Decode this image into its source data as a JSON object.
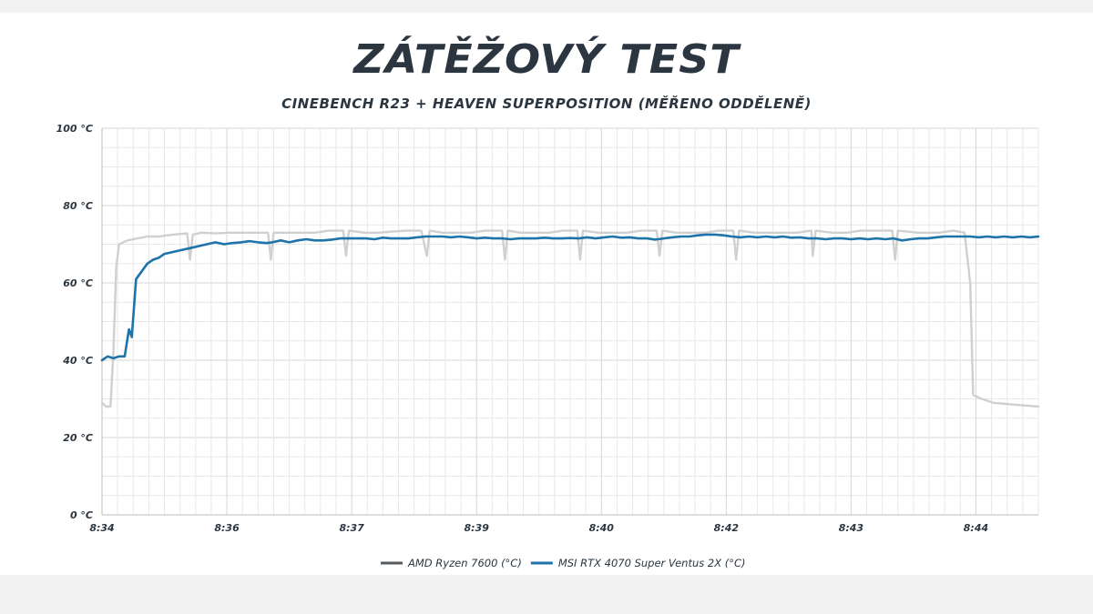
{
  "chart_data": {
    "type": "line",
    "title": "ZÁTĚŽOVÝ TEST",
    "subtitle": "CINEBENCH R23 + HEAVEN SUPERPOSITION (MĚŘENO ODDĚLENĚ)",
    "xlabel": "",
    "ylabel": "",
    "ylim": [
      0,
      100
    ],
    "yticks": [
      0,
      20,
      40,
      60,
      80,
      100
    ],
    "ytick_suffix": " °C",
    "xlim": [
      0,
      660
    ],
    "x_unit": "seconds from 8:34",
    "xtick_labels": [
      {
        "t": 0,
        "label": "8:34"
      },
      {
        "t": 88,
        "label": "8:36"
      },
      {
        "t": 176,
        "label": "8:37"
      },
      {
        "t": 264,
        "label": "8:39"
      },
      {
        "t": 352,
        "label": "8:40"
      },
      {
        "t": 440,
        "label": "8:42"
      },
      {
        "t": 528,
        "label": "8:43"
      },
      {
        "t": 616,
        "label": "8:44"
      }
    ],
    "grid": true,
    "legend_position": "bottom",
    "series": [
      {
        "name": "AMD Ryzen 7600 (°C)",
        "color": "#d0d0d0",
        "legend_color": "#555a5e",
        "points": [
          [
            0,
            29
          ],
          [
            3,
            28
          ],
          [
            6,
            28
          ],
          [
            8,
            42
          ],
          [
            10,
            64
          ],
          [
            12,
            70
          ],
          [
            18,
            71
          ],
          [
            25,
            71.5
          ],
          [
            32,
            72
          ],
          [
            40,
            72
          ],
          [
            50,
            72.5
          ],
          [
            60,
            72.8
          ],
          [
            62,
            66
          ],
          [
            64,
            72.5
          ],
          [
            70,
            73
          ],
          [
            80,
            72.8
          ],
          [
            90,
            73
          ],
          [
            100,
            73
          ],
          [
            110,
            73
          ],
          [
            117,
            73
          ],
          [
            119,
            66
          ],
          [
            121,
            73
          ],
          [
            130,
            73
          ],
          [
            140,
            73
          ],
          [
            150,
            73
          ],
          [
            160,
            73.5
          ],
          [
            170,
            73.5
          ],
          [
            172,
            67
          ],
          [
            174,
            73.5
          ],
          [
            185,
            73
          ],
          [
            195,
            73
          ],
          [
            205,
            73.3
          ],
          [
            215,
            73.5
          ],
          [
            225,
            73.5
          ],
          [
            229,
            67
          ],
          [
            231,
            73.5
          ],
          [
            240,
            73
          ],
          [
            250,
            73
          ],
          [
            260,
            73
          ],
          [
            270,
            73.5
          ],
          [
            282,
            73.5
          ],
          [
            284,
            66
          ],
          [
            286,
            73.5
          ],
          [
            295,
            73
          ],
          [
            305,
            73
          ],
          [
            315,
            73
          ],
          [
            325,
            73.5
          ],
          [
            335,
            73.5
          ],
          [
            337,
            66
          ],
          [
            339,
            73.5
          ],
          [
            350,
            73
          ],
          [
            360,
            73
          ],
          [
            370,
            73
          ],
          [
            380,
            73.5
          ],
          [
            391,
            73.5
          ],
          [
            393,
            67
          ],
          [
            395,
            73.5
          ],
          [
            405,
            73
          ],
          [
            415,
            73
          ],
          [
            425,
            73
          ],
          [
            435,
            73.5
          ],
          [
            445,
            73.5
          ],
          [
            447,
            66
          ],
          [
            449,
            73.5
          ],
          [
            460,
            73
          ],
          [
            470,
            73
          ],
          [
            480,
            73
          ],
          [
            490,
            73
          ],
          [
            500,
            73.5
          ],
          [
            501,
            67
          ],
          [
            503,
            73.5
          ],
          [
            515,
            73
          ],
          [
            525,
            73
          ],
          [
            535,
            73.5
          ],
          [
            545,
            73.5
          ],
          [
            557,
            73.5
          ],
          [
            559,
            66
          ],
          [
            561,
            73.5
          ],
          [
            575,
            73
          ],
          [
            590,
            73
          ],
          [
            600,
            73.5
          ],
          [
            608,
            73
          ],
          [
            612,
            60
          ],
          [
            614,
            31
          ],
          [
            620,
            30
          ],
          [
            628,
            29
          ],
          [
            640,
            28.6
          ],
          [
            650,
            28.3
          ],
          [
            660,
            28
          ]
        ]
      },
      {
        "name": "MSI RTX 4070 Super Ventus 2X (°C)",
        "color": "#1e73a8",
        "legend_color": "#1e73a8",
        "points": [
          [
            0,
            40
          ],
          [
            4,
            41
          ],
          [
            8,
            40.5
          ],
          [
            12,
            41
          ],
          [
            16,
            41
          ],
          [
            19,
            48
          ],
          [
            21,
            46
          ],
          [
            24,
            61
          ],
          [
            28,
            63
          ],
          [
            32,
            65
          ],
          [
            36,
            66
          ],
          [
            40,
            66.5
          ],
          [
            44,
            67.5
          ],
          [
            50,
            68
          ],
          [
            56,
            68.5
          ],
          [
            62,
            69
          ],
          [
            68,
            69.5
          ],
          [
            74,
            70
          ],
          [
            80,
            70.5
          ],
          [
            86,
            70
          ],
          [
            92,
            70.3
          ],
          [
            98,
            70.5
          ],
          [
            104,
            70.8
          ],
          [
            110,
            70.5
          ],
          [
            116,
            70.3
          ],
          [
            120,
            70.5
          ],
          [
            126,
            71
          ],
          [
            132,
            70.5
          ],
          [
            138,
            71
          ],
          [
            144,
            71.3
          ],
          [
            150,
            71
          ],
          [
            156,
            71
          ],
          [
            162,
            71.2
          ],
          [
            168,
            71.5
          ],
          [
            174,
            71.5
          ],
          [
            180,
            71.5
          ],
          [
            186,
            71.5
          ],
          [
            192,
            71.3
          ],
          [
            198,
            71.7
          ],
          [
            204,
            71.5
          ],
          [
            210,
            71.5
          ],
          [
            216,
            71.5
          ],
          [
            222,
            71.8
          ],
          [
            228,
            72
          ],
          [
            234,
            72
          ],
          [
            240,
            72
          ],
          [
            246,
            71.8
          ],
          [
            252,
            72
          ],
          [
            258,
            71.8
          ],
          [
            264,
            71.5
          ],
          [
            270,
            71.7
          ],
          [
            276,
            71.5
          ],
          [
            282,
            71.5
          ],
          [
            288,
            71.3
          ],
          [
            294,
            71.5
          ],
          [
            300,
            71.5
          ],
          [
            306,
            71.5
          ],
          [
            312,
            71.7
          ],
          [
            318,
            71.5
          ],
          [
            324,
            71.5
          ],
          [
            330,
            71.6
          ],
          [
            336,
            71.5
          ],
          [
            342,
            71.8
          ],
          [
            348,
            71.5
          ],
          [
            354,
            71.8
          ],
          [
            360,
            72
          ],
          [
            366,
            71.7
          ],
          [
            372,
            71.8
          ],
          [
            378,
            71.5
          ],
          [
            384,
            71.5
          ],
          [
            390,
            71.2
          ],
          [
            396,
            71.5
          ],
          [
            402,
            71.8
          ],
          [
            408,
            72
          ],
          [
            414,
            72
          ],
          [
            420,
            72.3
          ],
          [
            426,
            72.5
          ],
          [
            432,
            72.5
          ],
          [
            438,
            72.3
          ],
          [
            444,
            72
          ],
          [
            450,
            71.8
          ],
          [
            456,
            72
          ],
          [
            462,
            71.8
          ],
          [
            468,
            72
          ],
          [
            474,
            71.8
          ],
          [
            480,
            72
          ],
          [
            486,
            71.7
          ],
          [
            492,
            71.8
          ],
          [
            498,
            71.5
          ],
          [
            504,
            71.5
          ],
          [
            510,
            71.3
          ],
          [
            516,
            71.5
          ],
          [
            522,
            71.5
          ],
          [
            528,
            71.3
          ],
          [
            534,
            71.5
          ],
          [
            540,
            71.3
          ],
          [
            546,
            71.5
          ],
          [
            552,
            71.3
          ],
          [
            558,
            71.5
          ],
          [
            564,
            71
          ],
          [
            570,
            71.3
          ],
          [
            576,
            71.5
          ],
          [
            582,
            71.5
          ],
          [
            588,
            71.8
          ],
          [
            594,
            72
          ],
          [
            600,
            72
          ],
          [
            606,
            72
          ],
          [
            612,
            72
          ],
          [
            618,
            71.8
          ],
          [
            624,
            72
          ],
          [
            630,
            71.8
          ],
          [
            636,
            72
          ],
          [
            642,
            71.8
          ],
          [
            648,
            72
          ],
          [
            654,
            71.8
          ],
          [
            660,
            72
          ]
        ]
      }
    ]
  }
}
